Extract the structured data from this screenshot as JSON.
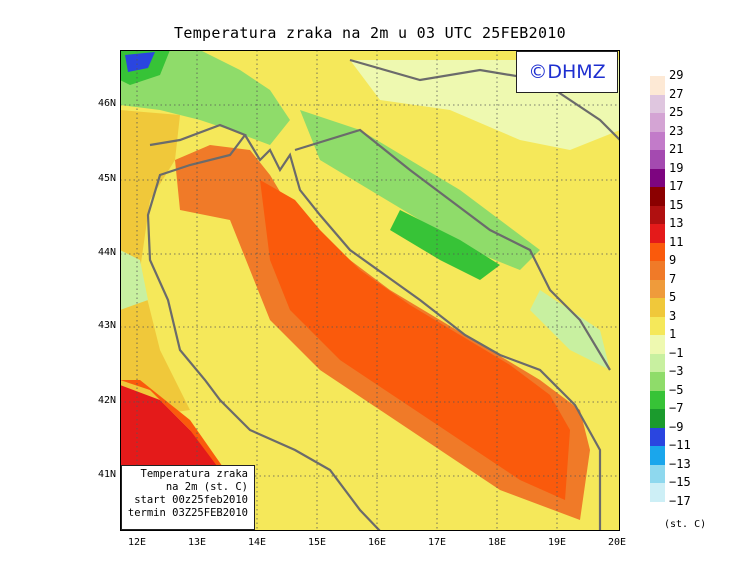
{
  "title": "Temperatura zraka na 2m u 03 UTC 25FEB2010",
  "logo": "©DHMZ",
  "infobox": {
    "line1": "Temperatura zraka",
    "line2": "na 2m (st. C)",
    "line3": "start 00z25feb2010",
    "line4": "termin 03Z25FEB2010"
  },
  "y_ticks": [
    "46N",
    "45N",
    "44N",
    "43N",
    "42N",
    "41N"
  ],
  "x_ticks": [
    "12E",
    "13E",
    "14E",
    "15E",
    "16E",
    "17E",
    "18E",
    "19E",
    "20E"
  ],
  "legend_labels": [
    "29",
    "27",
    "25",
    "23",
    "21",
    "19",
    "17",
    "15",
    "13",
    "11",
    "9",
    "7",
    "5",
    "3",
    "1",
    "−1",
    "−3",
    "−5",
    "−7",
    "−9",
    "−11",
    "−13",
    "−15",
    "−17"
  ],
  "legend_colors": [
    "#fde9d5",
    "#dfc6df",
    "#d4a4d4",
    "#c27bc9",
    "#a44ab0",
    "#7d0580",
    "#8b0000",
    "#b01010",
    "#e41a1a",
    "#fa5a0c",
    "#f07a28",
    "#ef9b3b",
    "#f0c83a",
    "#f5e85a",
    "#eef9b0",
    "#c8f0a0",
    "#8fdc6a",
    "#37c337",
    "#1b9b2d",
    "#2a45e0",
    "#1aa6ec",
    "#8ed8ee",
    "#cdeff6",
    "#e9fbfd"
  ],
  "unit": "(st. C)"
}
